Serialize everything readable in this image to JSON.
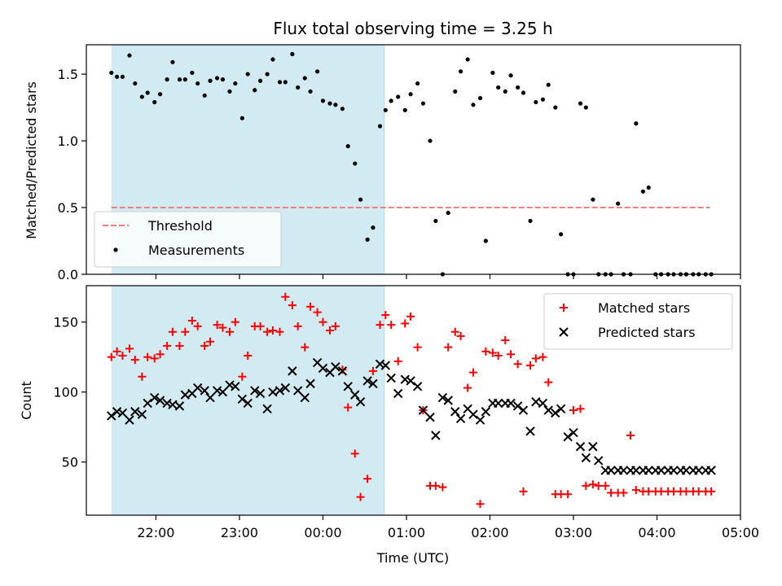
{
  "chart_data": [
    {
      "type": "scatter",
      "title": "Flux total observing time = 3.25 h",
      "ylabel": "Matched/Predicted stars",
      "xlim": [
        "21:10",
        "05:00"
      ],
      "ylim": [
        0,
        1.72
      ],
      "yticks": [
        "0.0",
        "0.5",
        "1.0",
        "1.5"
      ],
      "shaded_region": {
        "x_start": "21:28",
        "x_end": "00:44",
        "color": "#add8e6"
      },
      "threshold": {
        "label": "Threshold",
        "value": 0.5,
        "x_start": "21:28",
        "x_end": "04:38",
        "color": "#f08080",
        "style": "dashed"
      },
      "legend": {
        "placement": "lower-left",
        "entries": [
          "Threshold",
          "Measurements"
        ]
      },
      "series": [
        {
          "name": "Measurements",
          "marker": "dot",
          "color": "#000000",
          "x": [
            "21:28",
            "21:32",
            "21:36",
            "21:41",
            "21:45",
            "21:50",
            "21:54",
            "21:59",
            "22:03",
            "22:08",
            "22:12",
            "22:17",
            "22:21",
            "22:26",
            "22:30",
            "22:35",
            "22:39",
            "22:44",
            "22:48",
            "22:53",
            "22:57",
            "23:02",
            "23:06",
            "23:11",
            "23:15",
            "23:20",
            "23:24",
            "23:29",
            "23:33",
            "23:38",
            "23:42",
            "23:47",
            "23:51",
            "23:56",
            "00:00",
            "00:05",
            "00:09",
            "00:14",
            "00:18",
            "00:23",
            "00:27",
            "00:32",
            "00:36",
            "00:41",
            "00:45",
            "00:49",
            "00:54",
            "00:59",
            "01:03",
            "01:08",
            "01:12",
            "01:17",
            "01:21",
            "01:26",
            "01:30",
            "01:35",
            "01:39",
            "01:44",
            "01:48",
            "01:53",
            "01:57",
            "02:02",
            "02:06",
            "02:11",
            "02:15",
            "02:20",
            "02:24",
            "02:29",
            "02:33",
            "02:38",
            "02:42",
            "02:47",
            "02:51",
            "02:56",
            "03:00",
            "03:05",
            "03:09",
            "03:14",
            "03:18",
            "03:23",
            "03:27",
            "03:32",
            "03:36",
            "03:41",
            "03:45",
            "03:50",
            "03:54",
            "03:59",
            "04:03",
            "04:08",
            "04:12",
            "04:17",
            "04:21",
            "04:26",
            "04:30",
            "04:35",
            "04:39"
          ],
          "y": [
            1.51,
            1.48,
            1.48,
            1.64,
            1.43,
            1.33,
            1.36,
            1.29,
            1.35,
            1.46,
            1.59,
            1.46,
            1.46,
            1.51,
            1.43,
            1.34,
            1.45,
            1.47,
            1.46,
            1.37,
            1.43,
            1.17,
            1.5,
            1.38,
            1.45,
            1.5,
            1.61,
            1.44,
            1.44,
            1.65,
            1.4,
            1.47,
            1.37,
            1.52,
            1.3,
            1.28,
            1.27,
            1.24,
            0.96,
            0.83,
            0.56,
            0.26,
            0.35,
            1.11,
            1.23,
            1.3,
            1.33,
            1.23,
            1.35,
            1.43,
            1.28,
            1.0,
            0.4,
            0.0,
            0.46,
            1.37,
            1.52,
            1.61,
            1.27,
            1.32,
            0.25,
            1.51,
            1.4,
            1.37,
            1.49,
            1.4,
            1.36,
            0.4,
            1.29,
            1.31,
            1.42,
            1.25,
            0.3,
            0.0,
            0.0,
            1.28,
            1.25,
            0.56,
            0.0,
            0.0,
            0.0,
            0.53,
            0.0,
            0.0,
            1.13,
            0.62,
            0.65,
            0.0,
            0.0,
            0.0,
            0.0,
            0.0,
            0.0,
            0.0,
            0.0,
            0.0,
            0.0
          ]
        }
      ]
    },
    {
      "type": "scatter",
      "xlabel": "Time (UTC)",
      "ylabel": "Count",
      "xlim": [
        "21:10",
        "05:00"
      ],
      "xticks": [
        "22:00",
        "23:00",
        "00:00",
        "01:00",
        "02:00",
        "03:00",
        "04:00",
        "05:00"
      ],
      "ylim": [
        12,
        176
      ],
      "yticks": [
        "50",
        "100",
        "150"
      ],
      "shaded_region": {
        "x_start": "21:28",
        "x_end": "00:44",
        "color": "#add8e6"
      },
      "legend": {
        "placement": "upper-right",
        "entries": [
          "Matched stars",
          "Predicted stars"
        ]
      },
      "series": [
        {
          "name": "Matched stars",
          "marker": "plus",
          "color": "#ff0000",
          "x": [
            "21:28",
            "21:32",
            "21:36",
            "21:41",
            "21:45",
            "21:50",
            "21:54",
            "21:59",
            "22:03",
            "22:08",
            "22:12",
            "22:17",
            "22:21",
            "22:26",
            "22:30",
            "22:35",
            "22:39",
            "22:44",
            "22:48",
            "22:53",
            "22:57",
            "23:02",
            "23:06",
            "23:11",
            "23:15",
            "23:20",
            "23:24",
            "23:29",
            "23:33",
            "23:38",
            "23:42",
            "23:47",
            "23:51",
            "23:56",
            "00:00",
            "00:05",
            "00:09",
            "00:14",
            "00:18",
            "00:23",
            "00:27",
            "00:32",
            "00:36",
            "00:41",
            "00:45",
            "00:49",
            "00:54",
            "00:59",
            "01:03",
            "01:08",
            "01:12",
            "01:17",
            "01:21",
            "01:26",
            "01:30",
            "01:35",
            "01:39",
            "01:44",
            "01:48",
            "01:53",
            "01:57",
            "02:02",
            "02:06",
            "02:11",
            "02:15",
            "02:20",
            "02:24",
            "02:29",
            "02:33",
            "02:38",
            "02:42",
            "02:47",
            "02:51",
            "02:56",
            "03:00",
            "03:05",
            "03:09",
            "03:14",
            "03:18",
            "03:23",
            "03:27",
            "03:32",
            "03:36",
            "03:41",
            "03:45",
            "03:50",
            "03:54",
            "03:59",
            "04:03",
            "04:08",
            "04:12",
            "04:17",
            "04:21",
            "04:26",
            "04:30",
            "04:35",
            "04:39"
          ],
          "y": [
            125,
            129,
            126,
            131,
            123,
            111,
            125,
            124,
            127,
            133,
            143,
            133,
            143,
            151,
            147,
            133,
            136,
            148,
            146,
            143,
            150,
            111,
            126,
            147,
            147,
            143,
            144,
            143,
            168,
            162,
            147,
            132,
            161,
            157,
            150,
            144,
            147,
            116,
            89,
            56,
            25,
            38,
            115,
            148,
            155,
            148,
            122,
            149,
            154,
            132,
            87,
            33,
            33,
            32,
            132,
            143,
            140,
            103,
            114,
            20,
            129,
            128,
            126,
            137,
            127,
            120,
            29,
            119,
            124,
            125,
            107,
            27,
            27,
            27,
            87,
            88,
            33,
            34,
            33,
            33,
            28,
            28,
            28,
            69,
            30,
            29,
            29,
            29,
            29,
            29,
            29,
            29,
            29,
            29,
            29,
            29,
            29
          ]
        },
        {
          "name": "Predicted stars",
          "marker": "x",
          "color": "#000000",
          "x": [
            "21:28",
            "21:32",
            "21:36",
            "21:41",
            "21:45",
            "21:50",
            "21:54",
            "21:59",
            "22:03",
            "22:08",
            "22:12",
            "22:17",
            "22:21",
            "22:26",
            "22:30",
            "22:35",
            "22:39",
            "22:44",
            "22:48",
            "22:53",
            "22:57",
            "23:02",
            "23:06",
            "23:11",
            "23:15",
            "23:20",
            "23:24",
            "23:29",
            "23:33",
            "23:38",
            "23:42",
            "23:47",
            "23:51",
            "23:56",
            "00:00",
            "00:05",
            "00:09",
            "00:14",
            "00:18",
            "00:23",
            "00:27",
            "00:32",
            "00:36",
            "00:41",
            "00:45",
            "00:49",
            "00:54",
            "00:59",
            "01:03",
            "01:08",
            "01:12",
            "01:17",
            "01:21",
            "01:26",
            "01:30",
            "01:35",
            "01:39",
            "01:44",
            "01:48",
            "01:53",
            "01:57",
            "02:02",
            "02:06",
            "02:11",
            "02:15",
            "02:20",
            "02:24",
            "02:29",
            "02:33",
            "02:38",
            "02:42",
            "02:47",
            "02:51",
            "02:56",
            "03:00",
            "03:05",
            "03:09",
            "03:14",
            "03:18",
            "03:23",
            "03:27",
            "03:32",
            "03:36",
            "03:41",
            "03:45",
            "03:50",
            "03:54",
            "03:59",
            "04:03",
            "04:08",
            "04:12",
            "04:17",
            "04:21",
            "04:26",
            "04:30",
            "04:35",
            "04:39"
          ],
          "y": [
            83,
            86,
            85,
            80,
            86,
            84,
            92,
            96,
            94,
            92,
            91,
            90,
            98,
            99,
            103,
            101,
            96,
            101,
            100,
            105,
            104,
            95,
            92,
            101,
            99,
            88,
            100,
            101,
            103,
            115,
            101,
            96,
            106,
            121,
            117,
            114,
            118,
            115,
            104,
            98,
            93,
            108,
            106,
            120,
            119,
            110,
            99,
            109,
            108,
            104,
            87,
            82,
            69,
            96,
            94,
            86,
            81,
            88,
            84,
            80,
            86,
            92,
            92,
            92,
            92,
            90,
            87,
            72,
            93,
            92,
            87,
            85,
            88,
            68,
            71,
            61,
            53,
            61,
            51,
            44,
            44,
            44,
            44,
            44,
            44,
            44,
            44,
            44,
            44,
            44,
            44,
            44,
            44,
            44,
            44,
            44,
            44
          ]
        }
      ]
    }
  ]
}
